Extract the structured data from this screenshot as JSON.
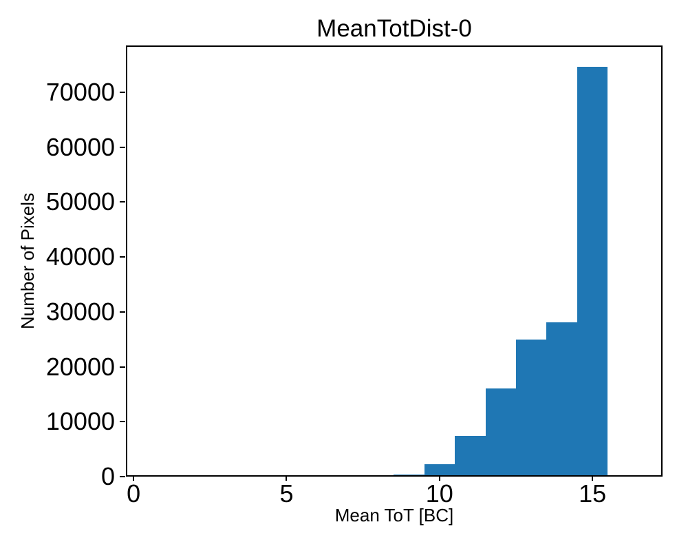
{
  "chart_data": {
    "type": "bar",
    "subtype": "histogram",
    "title": "MeanTotDist-0",
    "xlabel": "Mean ToT [BC]",
    "ylabel": "Number of Pixels",
    "bin_edges": [
      8.5,
      9.5,
      10.5,
      11.5,
      12.5,
      13.5,
      14.5,
      15.5
    ],
    "counts": [
      400,
      2300,
      7400,
      16100,
      25000,
      28100,
      74600
    ],
    "xticks": [
      0,
      5,
      10,
      15
    ],
    "yticks": [
      0,
      10000,
      20000,
      30000,
      40000,
      50000,
      60000,
      70000
    ],
    "xlim": [
      -0.25,
      17.29
    ],
    "ylim": [
      0,
      78530
    ],
    "grid": false,
    "legend": null,
    "colors": {
      "bar": "#1f77b4",
      "axis": "#000000",
      "text": "#000000",
      "background": "#ffffff"
    }
  }
}
